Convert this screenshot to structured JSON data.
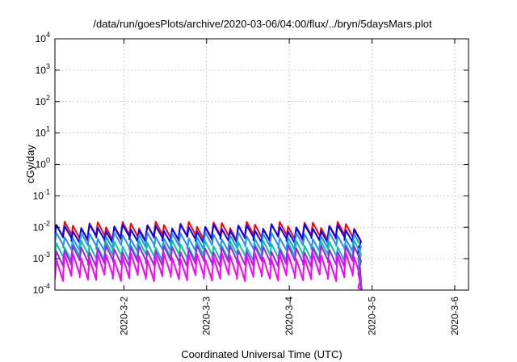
{
  "chart_data": {
    "type": "line",
    "title": "/data/run/goesPlots/archive/2020-03-06/04:00/flux/../bryn/5daysMars.plot",
    "xlabel": "Coordinated Universal Time (UTC)",
    "ylabel": "cGy/day",
    "y_scale": "log",
    "ylim": [
      0.0001,
      10000
    ],
    "y_ticks": [
      {
        "base": "10",
        "exp": "-4"
      },
      {
        "base": "10",
        "exp": "-3"
      },
      {
        "base": "10",
        "exp": "-2"
      },
      {
        "base": "10",
        "exp": "-1"
      },
      {
        "base": "10",
        "exp": "0"
      },
      {
        "base": "10",
        "exp": "1"
      },
      {
        "base": "10",
        "exp": "2"
      },
      {
        "base": "10",
        "exp": "3"
      },
      {
        "base": "10",
        "exp": "4"
      }
    ],
    "xlim": [
      "2020-03-01T04:00",
      "2020-03-06T04:00"
    ],
    "x_tick_labels": [
      "2020-3-2",
      "2020-3-3",
      "2020-3-4",
      "2020-3-5",
      "2020-3-6"
    ],
    "x_ticks": [
      "2020-03-02",
      "2020-03-03",
      "2020-03-04",
      "2020-03-05",
      "2020-03-06"
    ],
    "grid": true,
    "pulse_period_hours": 2.4,
    "end_time": "2020-03-04T19:00",
    "series": [
      {
        "color": "#ff0000",
        "peak": 0.012,
        "trough": 0.0055
      },
      {
        "color": "#0000ff",
        "peak": 0.0098,
        "trough": 0.0048
      },
      {
        "color": "#1e90ff",
        "peak": 0.0055,
        "trough": 0.0026
      },
      {
        "color": "#00c8a0",
        "peak": 0.003,
        "trough": 0.0013
      },
      {
        "color": "#a020f0",
        "peak": 0.0021,
        "trough": 0.00085
      },
      {
        "color": "#ff00ff",
        "peak": 0.0012,
        "trough": 0.0003
      }
    ]
  }
}
